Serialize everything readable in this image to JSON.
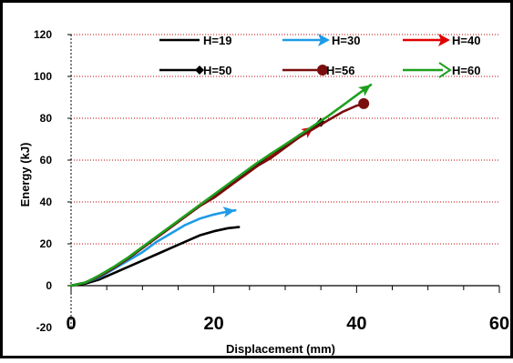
{
  "chart_data": {
    "type": "line",
    "xlabel": "Displacement (mm)",
    "ylabel": "Energy (kJ)",
    "xlim": [
      0,
      60
    ],
    "ylim": [
      -20,
      120
    ],
    "x_ticks": [
      "0",
      "20",
      "40",
      "60"
    ],
    "y_ticks": [
      "-20",
      "0",
      "20",
      "40",
      "60",
      "80",
      "100",
      "120"
    ],
    "grid": "horizontal dotted red lines",
    "legend_position": "top",
    "series": [
      {
        "name": "H=19",
        "color": "#000000",
        "marker": "none",
        "x": [
          0,
          2,
          4,
          6,
          8,
          10,
          12,
          14,
          16,
          18,
          20,
          22,
          23.5
        ],
        "y": [
          0,
          1,
          3,
          6,
          9,
          12,
          15,
          18,
          21,
          24,
          26,
          27.5,
          28
        ]
      },
      {
        "name": "H=30",
        "color": "#1E9BE6",
        "marker": "arrow",
        "x": [
          0,
          2,
          4,
          6,
          8,
          10,
          12,
          14,
          16,
          18,
          20,
          22,
          23
        ],
        "y": [
          0,
          1.5,
          4,
          8,
          12,
          16,
          21,
          25,
          29,
          32,
          34,
          35.5,
          36
        ]
      },
      {
        "name": "H=40",
        "color": "#E00000",
        "marker": "arrow",
        "x": [
          0,
          2,
          4,
          6,
          8,
          10,
          12,
          14,
          16,
          18,
          20,
          22,
          24,
          26,
          28,
          30,
          32,
          34
        ],
        "y": [
          0,
          1.5,
          4.5,
          8.5,
          13,
          18,
          23,
          28,
          33,
          38,
          43,
          48,
          52,
          57,
          62,
          67,
          71,
          76
        ]
      },
      {
        "name": "H=50",
        "color": "#000000",
        "marker": "diamond",
        "x": [
          0,
          2,
          4,
          6,
          8,
          10,
          12,
          14,
          16,
          18,
          20,
          22,
          24,
          26,
          28,
          30,
          32,
          34,
          35
        ],
        "y": [
          0,
          1.5,
          4.5,
          8.5,
          13,
          18,
          23,
          28,
          33,
          38,
          43,
          48,
          53,
          58,
          63,
          67,
          72,
          76,
          78
        ]
      },
      {
        "name": "H=56",
        "color": "#7A0E0E",
        "marker": "circle",
        "x": [
          0,
          2,
          4,
          6,
          8,
          10,
          12,
          14,
          16,
          18,
          20,
          22,
          24,
          26,
          28,
          30,
          32,
          34,
          36,
          38,
          40,
          41
        ],
        "y": [
          0,
          1.5,
          4.5,
          8.5,
          13,
          18,
          23,
          28,
          33,
          38,
          42,
          47,
          52,
          57,
          61,
          66,
          71,
          75,
          79,
          83,
          86,
          87
        ]
      },
      {
        "name": "H=60",
        "color": "#1EA01E",
        "marker": "arrow",
        "x": [
          0,
          2,
          4,
          6,
          8,
          10,
          12,
          14,
          16,
          18,
          20,
          22,
          24,
          26,
          28,
          30,
          32,
          34,
          36,
          38,
          40,
          42
        ],
        "y": [
          0,
          1.5,
          5,
          9,
          13.5,
          18.5,
          23.5,
          28.5,
          33.5,
          38.5,
          43.5,
          48.5,
          53.5,
          58.5,
          63,
          67.5,
          72,
          76.5,
          81,
          86,
          91,
          96
        ]
      }
    ]
  }
}
